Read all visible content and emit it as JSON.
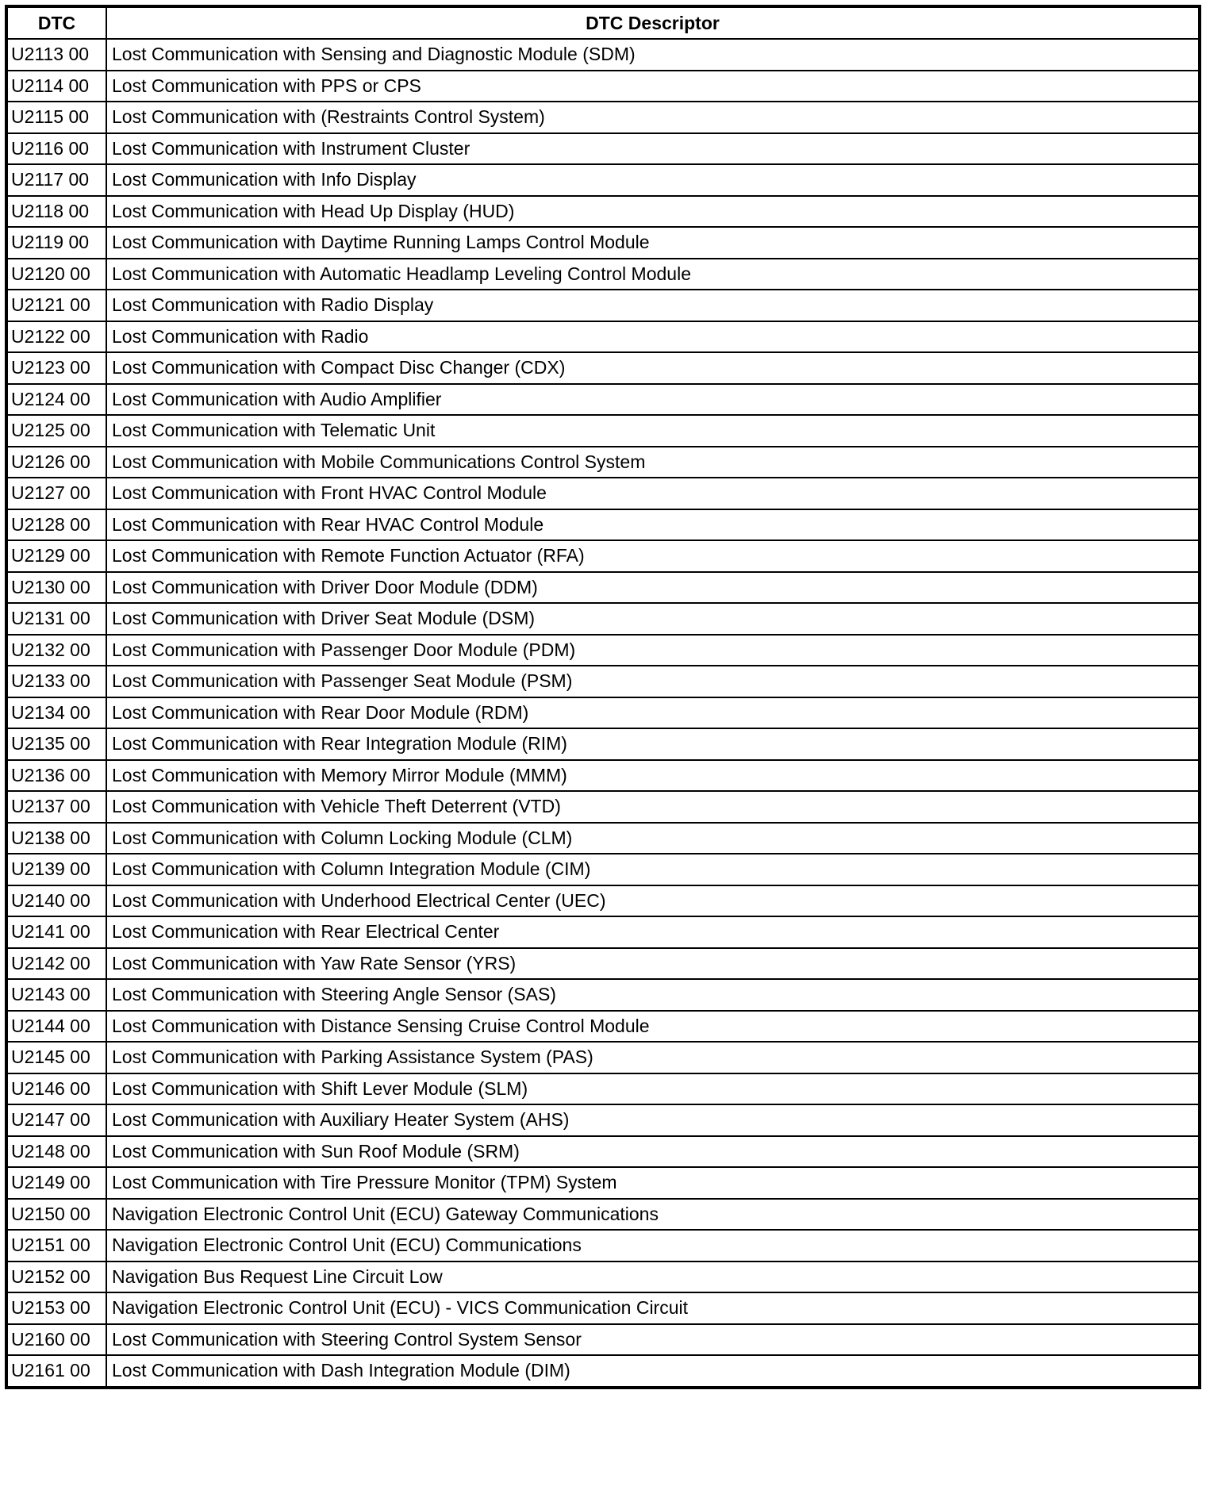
{
  "table": {
    "headers": [
      "DTC",
      "DTC Descriptor"
    ],
    "rows": [
      [
        "U2113 00",
        "Lost Communication with Sensing and Diagnostic Module (SDM)"
      ],
      [
        "U2114 00",
        "Lost Communication with PPS or CPS"
      ],
      [
        "U2115 00",
        "Lost Communication with (Restraints Control System)"
      ],
      [
        "U2116 00",
        "Lost Communication with Instrument Cluster"
      ],
      [
        "U2117 00",
        "Lost Communication with Info Display"
      ],
      [
        "U2118 00",
        "Lost Communication with Head Up Display (HUD)"
      ],
      [
        "U2119 00",
        "Lost Communication with Daytime Running Lamps Control Module"
      ],
      [
        "U2120 00",
        "Lost Communication with Automatic Headlamp Leveling Control Module"
      ],
      [
        "U2121 00",
        "Lost Communication with Radio Display"
      ],
      [
        "U2122 00",
        "Lost Communication with Radio"
      ],
      [
        "U2123 00",
        "Lost Communication with Compact Disc Changer (CDX)"
      ],
      [
        "U2124 00",
        "Lost Communication with Audio Amplifier"
      ],
      [
        "U2125 00",
        "Lost Communication with Telematic Unit"
      ],
      [
        "U2126 00",
        "Lost Communication with Mobile Communications Control System"
      ],
      [
        "U2127 00",
        "Lost Communication with Front HVAC Control Module"
      ],
      [
        "U2128 00",
        "Lost Communication with Rear HVAC Control Module"
      ],
      [
        "U2129 00",
        "Lost Communication with Remote Function Actuator (RFA)"
      ],
      [
        "U2130 00",
        "Lost Communication with Driver Door Module (DDM)"
      ],
      [
        "U2131 00",
        "Lost Communication with Driver Seat Module (DSM)"
      ],
      [
        "U2132 00",
        "Lost Communication with Passenger Door Module (PDM)"
      ],
      [
        "U2133 00",
        "Lost Communication with Passenger Seat Module (PSM)"
      ],
      [
        "U2134 00",
        "Lost Communication with Rear Door Module (RDM)"
      ],
      [
        "U2135 00",
        "Lost Communication with Rear Integration Module (RIM)"
      ],
      [
        "U2136 00",
        "Lost Communication with Memory Mirror Module (MMM)"
      ],
      [
        "U2137 00",
        "Lost Communication with Vehicle Theft Deterrent (VTD)"
      ],
      [
        "U2138 00",
        "Lost Communication with Column Locking Module (CLM)"
      ],
      [
        "U2139 00",
        "Lost Communication with Column Integration Module (CIM)"
      ],
      [
        "U2140 00",
        "Lost Communication with Underhood Electrical Center (UEC)"
      ],
      [
        "U2141 00",
        "Lost Communication with Rear Electrical Center"
      ],
      [
        "U2142 00",
        "Lost Communication with Yaw Rate Sensor (YRS)"
      ],
      [
        "U2143 00",
        "Lost Communication with Steering Angle Sensor (SAS)"
      ],
      [
        "U2144 00",
        "Lost Communication with Distance Sensing Cruise Control Module"
      ],
      [
        "U2145 00",
        "Lost Communication with Parking Assistance System (PAS)"
      ],
      [
        "U2146 00",
        "Lost Communication with Shift Lever Module (SLM)"
      ],
      [
        "U2147 00",
        "Lost Communication with Auxiliary Heater System (AHS)"
      ],
      [
        "U2148 00",
        "Lost Communication with Sun Roof Module (SRM)"
      ],
      [
        "U2149 00",
        "Lost Communication with Tire Pressure Monitor (TPM) System"
      ],
      [
        "U2150 00",
        "Navigation Electronic Control Unit (ECU) Gateway Communications"
      ],
      [
        "U2151 00",
        "Navigation Electronic Control Unit (ECU) Communications"
      ],
      [
        "U2152 00",
        "Navigation Bus Request Line Circuit Low"
      ],
      [
        "U2153 00",
        "Navigation Electronic Control Unit (ECU) - VICS Communication Circuit"
      ],
      [
        "U2160 00",
        "Lost Communication with Steering Control System Sensor"
      ],
      [
        "U2161 00",
        "Lost Communication with Dash Integration Module (DIM)"
      ]
    ]
  }
}
